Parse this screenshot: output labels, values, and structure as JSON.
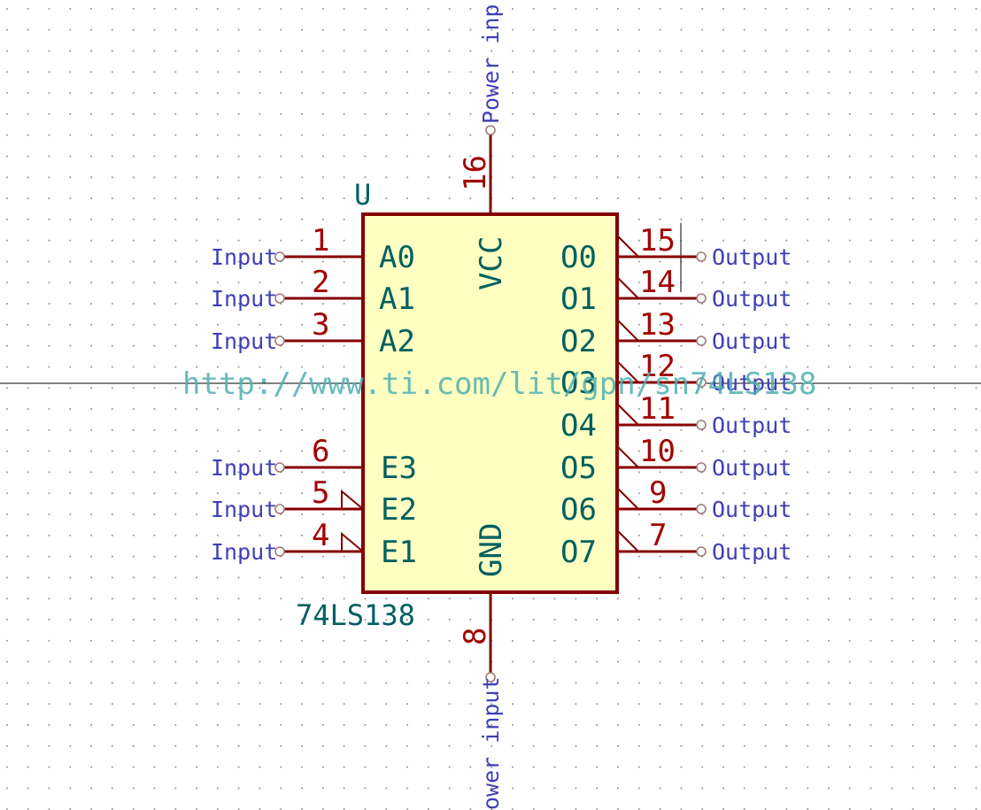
{
  "symbol": {
    "reference": "U",
    "value": "74LS138",
    "datasheet_url": "http://www.ti.com/lit/gpn/sn74LS138"
  },
  "left_pins": [
    {
      "num": "1",
      "name": "A0",
      "label": "Input",
      "inverted": false
    },
    {
      "num": "2",
      "name": "A1",
      "label": "Input",
      "inverted": false
    },
    {
      "num": "3",
      "name": "A2",
      "label": "Input",
      "inverted": false
    },
    {
      "num": "6",
      "name": "E3",
      "label": "Input",
      "inverted": false
    },
    {
      "num": "5",
      "name": "E2",
      "label": "Input",
      "inverted": true
    },
    {
      "num": "4",
      "name": "E1",
      "label": "Input",
      "inverted": true
    }
  ],
  "right_pins": [
    {
      "num": "15",
      "name": "O0",
      "label": "Output"
    },
    {
      "num": "14",
      "name": "O1",
      "label": "Output"
    },
    {
      "num": "13",
      "name": "O2",
      "label": "Output"
    },
    {
      "num": "12",
      "name": "O3",
      "label": "Output"
    },
    {
      "num": "11",
      "name": "O4",
      "label": "Output"
    },
    {
      "num": "10",
      "name": "O5",
      "label": "Output"
    },
    {
      "num": "9",
      "name": "O6",
      "label": "Output"
    },
    {
      "num": "7",
      "name": "O7",
      "label": "Output"
    }
  ],
  "top_pin": {
    "num": "16",
    "name": "VCC",
    "label": "Power inp"
  },
  "bottom_pin": {
    "num": "8",
    "name": "GND",
    "label": "ower input"
  }
}
